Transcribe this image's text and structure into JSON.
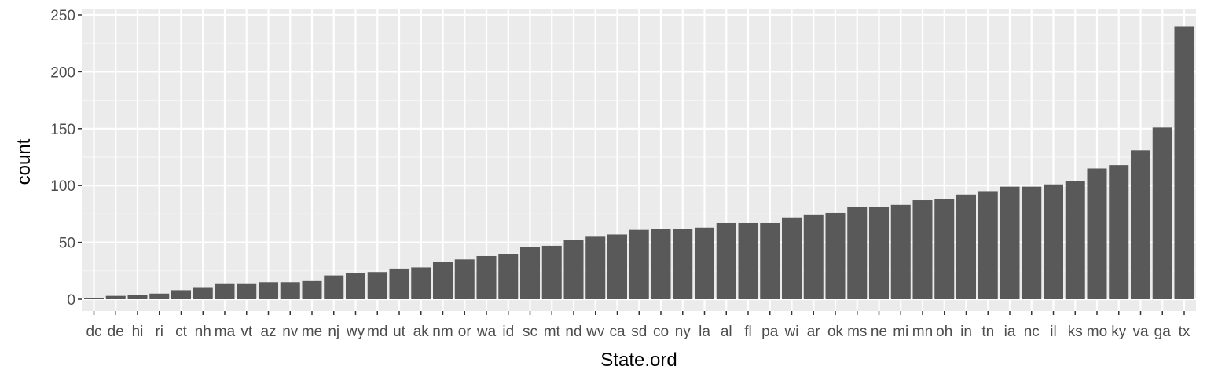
{
  "chart_data": {
    "type": "bar",
    "xlabel": "State.ord",
    "ylabel": "count",
    "ylim": [
      0,
      250
    ],
    "yticks": [
      0,
      50,
      100,
      150,
      200,
      250
    ],
    "grid": true,
    "categories": [
      "dc",
      "de",
      "hi",
      "ri",
      "ct",
      "nh",
      "ma",
      "vt",
      "az",
      "nv",
      "me",
      "nj",
      "wy",
      "md",
      "ut",
      "ak",
      "nm",
      "or",
      "wa",
      "id",
      "sc",
      "mt",
      "nd",
      "wv",
      "ca",
      "sd",
      "co",
      "ny",
      "la",
      "al",
      "fl",
      "pa",
      "wi",
      "ar",
      "ok",
      "ms",
      "ne",
      "mi",
      "mn",
      "oh",
      "in",
      "tn",
      "ia",
      "nc",
      "il",
      "ks",
      "mo",
      "ky",
      "va",
      "ga",
      "tx"
    ],
    "values": [
      1,
      3,
      4,
      5,
      8,
      10,
      14,
      14,
      15,
      15,
      16,
      21,
      23,
      24,
      27,
      28,
      33,
      35,
      38,
      40,
      46,
      47,
      52,
      55,
      57,
      61,
      62,
      62,
      63,
      67,
      67,
      67,
      72,
      74,
      76,
      81,
      81,
      83,
      87,
      88,
      92,
      95,
      99,
      99,
      101,
      104,
      115,
      118,
      131,
      151,
      240
    ],
    "colors": {
      "bar": "#595959",
      "panel": "#ebebeb",
      "grid_major": "#ffffff",
      "grid_minor": "#f5f5f5"
    }
  }
}
